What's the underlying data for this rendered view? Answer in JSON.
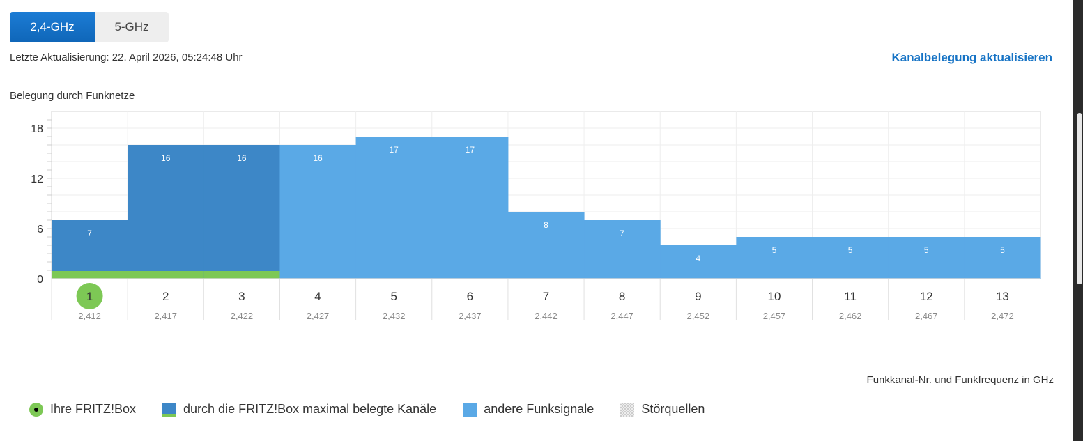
{
  "tabs": [
    {
      "label": "2,4-GHz",
      "active": true
    },
    {
      "label": "5-GHz",
      "active": false
    }
  ],
  "last_update": "Letzte Aktualisierung: 22. April 2026, 05:24:48 Uhr",
  "refresh_link": "Kanalbelegung aktualisieren",
  "chart_title": "Belegung durch Funknetze",
  "axis_caption": "Funkkanal-Nr. und Funkfrequenz in GHz",
  "legend": {
    "own": "Ihre FRITZ!Box",
    "fritz_channels": "durch die FRITZ!Box maximal belegte Kanäle",
    "other": "andere Funksignale",
    "noise": "Störquellen"
  },
  "colors": {
    "fritz_bar": "#3d87c7",
    "other_bar": "#5aa9e6",
    "own_marker": "#7dc855",
    "accent": "#1673c5"
  },
  "chart_data": {
    "type": "bar",
    "categories": [
      "1",
      "2",
      "3",
      "4",
      "5",
      "6",
      "7",
      "8",
      "9",
      "10",
      "11",
      "12",
      "13"
    ],
    "frequencies": [
      "2,412",
      "2,417",
      "2,422",
      "2,427",
      "2,432",
      "2,437",
      "2,442",
      "2,447",
      "2,452",
      "2,457",
      "2,462",
      "2,467",
      "2,472"
    ],
    "values": [
      7,
      16,
      16,
      16,
      17,
      17,
      8,
      7,
      4,
      5,
      5,
      5,
      5
    ],
    "fritz_channels": [
      "1",
      "2",
      "3"
    ],
    "own_channel": "1",
    "yticks": [
      0,
      6,
      12,
      18
    ],
    "ylim": [
      0,
      20
    ],
    "grid": true
  }
}
